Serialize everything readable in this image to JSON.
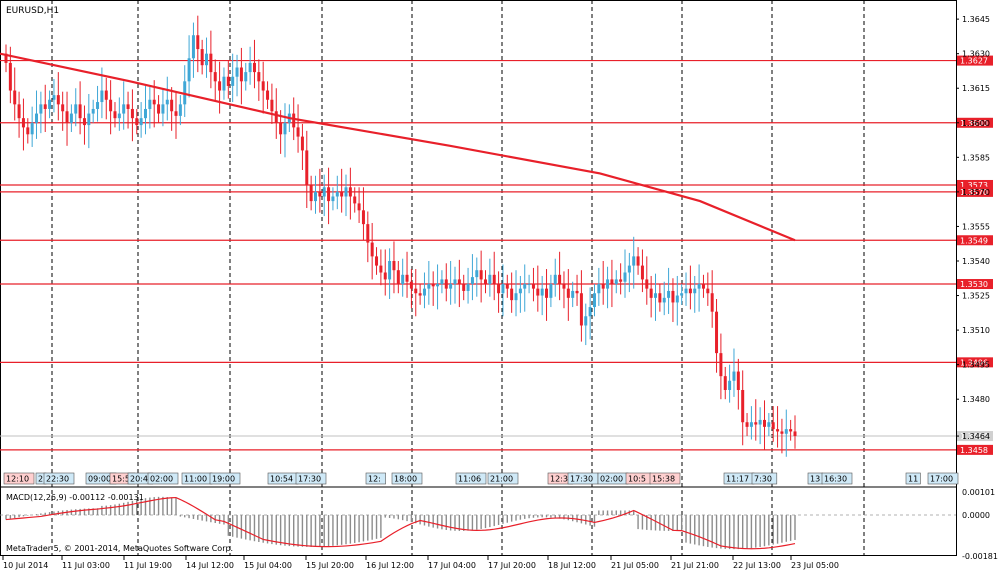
{
  "window": {
    "symbol_title": "EURUSD,H1",
    "indicator_label": "MACD(12,26,9) -0.00112 -0.00131",
    "copyright": "MetaTrader 5, © 2001-2014, MetaQuotes Software Corp."
  },
  "colors": {
    "background": "#ffffff",
    "bull_candle": "#3fa7d6",
    "bear_candle": "#e8202a",
    "ma_line": "#e8202a",
    "level_line": "#e8202a",
    "price_tag": "#e8202a",
    "grid": "#000000",
    "macd_hist": "#8c8c8c",
    "macd_signal": "#e8202a"
  },
  "chart_data": {
    "type": "candlestick",
    "symbol": "EURUSD",
    "timeframe": "H1",
    "y_range": [
      1.3451,
      1.3652
    ],
    "y_ticks": [
      "1.3645",
      "1.3630",
      "1.3615",
      "1.3600",
      "1.3585",
      "1.3570",
      "1.3555",
      "1.3540",
      "1.3525",
      "1.3510",
      "1.3495",
      "1.3480",
      "1.3464"
    ],
    "x_ticks": [
      "10 Jul 2014",
      "11 Jul 03:00",
      "11 Jul 19:00",
      "14 Jul 12:00",
      "15 Jul 04:00",
      "15 Jul 20:00",
      "16 Jul 12:00",
      "17 Jul 04:00",
      "17 Jul 20:00",
      "18 Jul 12:00",
      "21 Jul 05:00",
      "21 Jul 21:00",
      "22 Jul 13:00",
      "23 Jul 05:00"
    ],
    "levels": [
      {
        "value": 1.3627,
        "label": "1.3627"
      },
      {
        "value": 1.36,
        "label": "1.3600"
      },
      {
        "value": 1.3573,
        "label": "1.3573"
      },
      {
        "value": 1.357,
        "label": "1.3570"
      },
      {
        "value": 1.3549,
        "label": "1.3549"
      },
      {
        "value": 1.353,
        "label": "1.3530"
      },
      {
        "value": 1.3496,
        "label": "1.3496"
      },
      {
        "value": 1.3458,
        "label": "1.3458"
      }
    ],
    "current_price": {
      "value": 1.3464,
      "label": "1.3464"
    },
    "closes": [
      1.3626,
      1.3614,
      1.3608,
      1.3602,
      1.3598,
      1.3595,
      1.36,
      1.3604,
      1.3608,
      1.3606,
      1.361,
      1.3612,
      1.3608,
      1.3605,
      1.36,
      1.3604,
      1.3608,
      1.3602,
      1.3599,
      1.3604,
      1.3606,
      1.3609,
      1.3614,
      1.361,
      1.3605,
      1.3602,
      1.3604,
      1.3608,
      1.3606,
      1.3602,
      1.3599,
      1.3602,
      1.3606,
      1.361,
      1.3608,
      1.3604,
      1.3608,
      1.361,
      1.3605,
      1.3603,
      1.3608,
      1.3618,
      1.3628,
      1.3638,
      1.3632,
      1.3625,
      1.363,
      1.3622,
      1.3618,
      1.3614,
      1.362,
      1.3616,
      1.362,
      1.3624,
      1.3618,
      1.3622,
      1.3626,
      1.3622,
      1.3618,
      1.3614,
      1.361,
      1.3605,
      1.36,
      1.3595,
      1.36,
      1.3604,
      1.3598,
      1.3594,
      1.3588,
      1.3573,
      1.3566,
      1.357,
      1.3568,
      1.3572,
      1.3566,
      1.3568,
      1.357,
      1.3568,
      1.3572,
      1.3568,
      1.3565,
      1.3562,
      1.3556,
      1.3548,
      1.3542,
      1.3538,
      1.3535,
      1.3532,
      1.354,
      1.3536,
      1.353,
      1.3534,
      1.3531,
      1.3528,
      1.3526,
      1.3525,
      1.3528,
      1.353,
      1.3529,
      1.353,
      1.3532,
      1.3528,
      1.353,
      1.3532,
      1.353,
      1.3527,
      1.353,
      1.3533,
      1.3536,
      1.3532,
      1.353,
      1.3534,
      1.353,
      1.3526,
      1.353,
      1.3528,
      1.3523,
      1.3526,
      1.3528,
      1.353,
      1.353,
      1.3528,
      1.3525,
      1.3528,
      1.3524,
      1.353,
      1.3534,
      1.353,
      1.3528,
      1.3524,
      1.3527,
      1.3526,
      1.3512,
      1.3516,
      1.352,
      1.3526,
      1.353,
      1.3528,
      1.3532,
      1.353,
      1.3532,
      1.3531,
      1.3535,
      1.3538,
      1.3542,
      1.3538,
      1.3532,
      1.3528,
      1.3524,
      1.3526,
      1.3522,
      1.3524,
      1.3527,
      1.3522,
      1.3525,
      1.3526,
      1.3528,
      1.3526,
      1.3528,
      1.353,
      1.3528,
      1.3526,
      1.3518,
      1.35,
      1.349,
      1.3484,
      1.3488,
      1.3492,
      1.3484,
      1.347,
      1.3468,
      1.347,
      1.3469,
      1.3471,
      1.3468,
      1.347,
      1.3467,
      1.3466,
      1.3465,
      1.3467,
      1.3466,
      1.3464
    ],
    "ma_line": [
      [
        1.363,
        1.3618,
        1.3602,
        1.359,
        1.3578,
        1.3566,
        1.3549
      ]
    ],
    "macd_range": [
      -0.0018,
      0.0011
    ],
    "macd_ticks": [
      "0.00101",
      "0.0000",
      "-0.00181"
    ]
  },
  "time_axis": {
    "labels": [
      "10 Jul 2014",
      "11 Jul 03:00",
      "11 Jul 19:00",
      "14 Jul 12:00",
      "15 Jul 04:00",
      "15 Jul 20:00",
      "16 Jul 12:00",
      "17 Jul 04:00",
      "17 Jul 20:00",
      "18 Jul 12:00",
      "21 Jul 05:00",
      "21 Jul 21:00",
      "22 Jul 13:00",
      "23 Jul 05:00"
    ]
  },
  "trade_markers": [
    {
      "label": "12:10",
      "kind": "sell"
    },
    {
      "label": "2",
      "kind": "buy"
    },
    {
      "label": "22:30",
      "kind": "buy"
    },
    {
      "label": "09:00",
      "kind": "buy"
    },
    {
      "label": "15:5",
      "kind": "sell"
    },
    {
      "label": "20:4",
      "kind": "buy"
    },
    {
      "label": "02:00",
      "kind": "buy"
    },
    {
      "label": "11:00",
      "kind": "buy"
    },
    {
      "label": "19:00",
      "kind": "buy"
    },
    {
      "label": "10:54",
      "kind": "buy"
    },
    {
      "label": "17:30",
      "kind": "buy"
    },
    {
      "label": "12:",
      "kind": "buy"
    },
    {
      "label": "18:00",
      "kind": "buy"
    },
    {
      "label": "11:06",
      "kind": "buy"
    },
    {
      "label": "21:00",
      "kind": "buy"
    },
    {
      "label": "12:3",
      "kind": "sell"
    },
    {
      "label": "17:30",
      "kind": "buy"
    },
    {
      "label": "02:00",
      "kind": "buy"
    },
    {
      "label": "10:5",
      "kind": "sell"
    },
    {
      "label": "15:38",
      "kind": "sell"
    },
    {
      "label": "11:17",
      "kind": "buy"
    },
    {
      "label": "7:30",
      "kind": "buy"
    },
    {
      "label": "13",
      "kind": "buy"
    },
    {
      "label": "16:30",
      "kind": "buy"
    },
    {
      "label": "11",
      "kind": "buy"
    },
    {
      "label": "17:00",
      "kind": "buy"
    }
  ]
}
